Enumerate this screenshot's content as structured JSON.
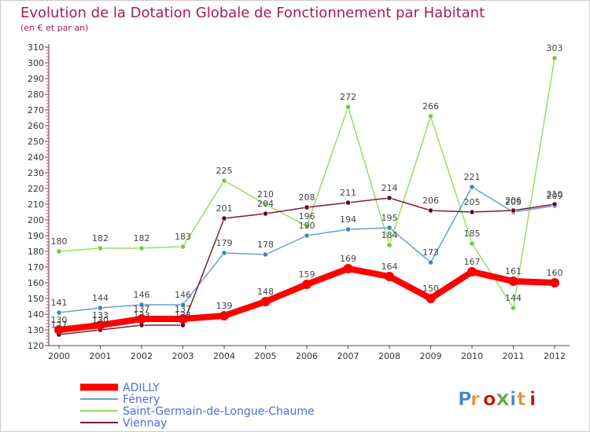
{
  "chart_data": {
    "type": "line",
    "title": "Evolution de la Dotation Globale de Fonctionnement par Habitant",
    "subtitle": "(en € et par an)",
    "xlabel": "",
    "ylabel": "",
    "x": [
      "2000",
      "2001",
      "2002",
      "2003",
      "2004",
      "2005",
      "2006",
      "2007",
      "2008",
      "2009",
      "2010",
      "2011",
      "2012"
    ],
    "ylim": [
      120,
      310
    ],
    "yticks": [
      120,
      130,
      140,
      150,
      160,
      170,
      180,
      190,
      200,
      210,
      220,
      230,
      240,
      250,
      260,
      270,
      280,
      290,
      300,
      310
    ],
    "grid": false,
    "legend_position": "bottom-left",
    "series": [
      {
        "name": "Saint-Germain-de-Longue-Chaume",
        "color": "#99dd66",
        "marker": "#77cc33",
        "values": [
          180,
          182,
          182,
          183,
          225,
          210,
          196,
          272,
          184,
          266,
          185,
          144,
          303
        ]
      },
      {
        "name": "Fénery",
        "color": "#6a9fd0",
        "marker": "#3d85c6",
        "values": [
          141,
          144,
          146,
          146,
          179,
          178,
          190,
          194,
          195,
          173,
          221,
          205,
          209
        ]
      },
      {
        "name": "Viennay",
        "color": "#7a1e2e",
        "marker": "#5a0f1c",
        "values": [
          127,
          130,
          133,
          133,
          201,
          204,
          208,
          211,
          214,
          206,
          205,
          206,
          210
        ]
      },
      {
        "name": "ADILLY",
        "color": "#ff0000",
        "marker": "#ff0000",
        "values": [
          130,
          133,
          137,
          137,
          139,
          148,
          159,
          169,
          164,
          150,
          167,
          161,
          160
        ]
      }
    ],
    "legend_order": [
      "ADILLY",
      "Fénery",
      "Saint-Germain-de-Longue-Chaume",
      "Viennay"
    ],
    "logo": "Proxiti"
  }
}
